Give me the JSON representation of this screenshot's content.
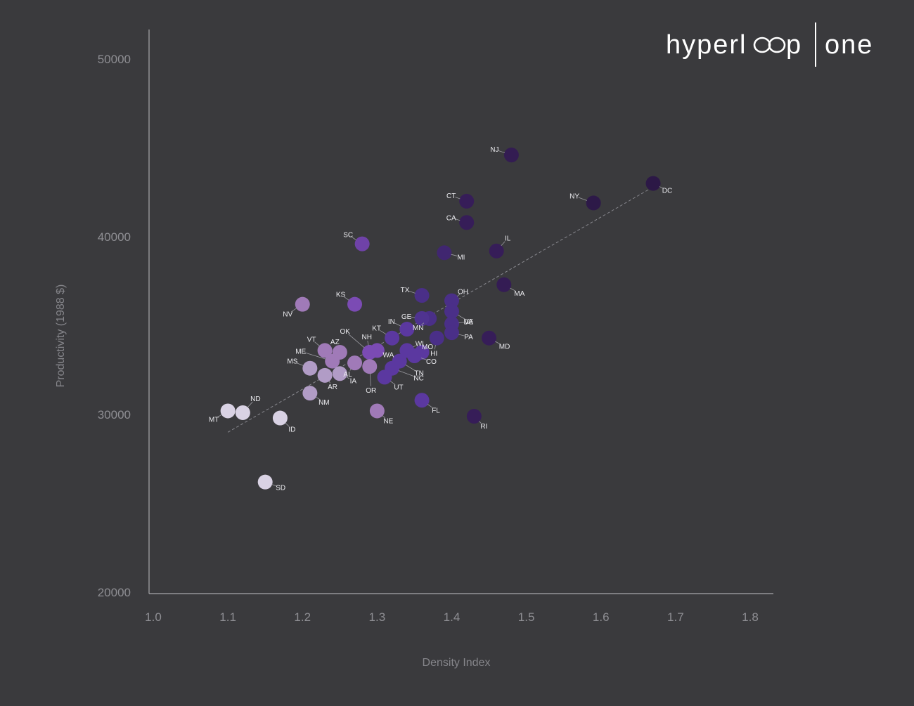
{
  "logo": {
    "text_left": "hyperl",
    "text_mid": "p",
    "text_right": "one"
  },
  "colors": {
    "background": "#3a3a3d",
    "axis": "#a7a7ab",
    "tick_text": "#8e8e93",
    "label_text": "#ececf0",
    "trend": "#8a8a90"
  },
  "chart_data": {
    "type": "scatter",
    "title": "",
    "xlabel": "Density Index",
    "ylabel": "Productivity (1988 $)",
    "xlim": [
      1.0,
      1.8
    ],
    "ylim": [
      20000,
      50000
    ],
    "x_ticks": [
      "1.0",
      "1.1",
      "1.2",
      "1.3",
      "1.4",
      "1.5",
      "1.6",
      "1.7",
      "1.8"
    ],
    "y_ticks": [
      "20000",
      "30000",
      "40000",
      "50000"
    ],
    "grid": false,
    "legend": "none",
    "trendline": {
      "x": [
        1.1,
        1.67
      ],
      "y": [
        29000,
        42800
      ]
    },
    "points": [
      {
        "label": "DC",
        "x": 1.67,
        "y": 43000,
        "color": "#2c1846"
      },
      {
        "label": "NY",
        "x": 1.59,
        "y": 41900,
        "color": "#2d1948"
      },
      {
        "label": "NJ",
        "x": 1.48,
        "y": 44600,
        "color": "#331c52"
      },
      {
        "label": "CT",
        "x": 1.42,
        "y": 42000,
        "color": "#361d58"
      },
      {
        "label": "CA",
        "x": 1.42,
        "y": 40800,
        "color": "#361d58"
      },
      {
        "label": "IL",
        "x": 1.46,
        "y": 39200,
        "color": "#361d58"
      },
      {
        "label": "MI",
        "x": 1.39,
        "y": 39100,
        "color": "#402670"
      },
      {
        "label": "MA",
        "x": 1.47,
        "y": 37300,
        "color": "#341c54"
      },
      {
        "label": "RI",
        "x": 1.43,
        "y": 29900,
        "color": "#361d58"
      },
      {
        "label": "MD",
        "x": 1.45,
        "y": 34300,
        "color": "#361d58"
      },
      {
        "label": "SC",
        "x": 1.28,
        "y": 39600,
        "color": "#6f42a8"
      },
      {
        "label": "TX",
        "x": 1.36,
        "y": 36700,
        "color": "#4a2f88"
      },
      {
        "label": "OH",
        "x": 1.4,
        "y": 36400,
        "color": "#4a2f88"
      },
      {
        "label": "MN",
        "x": 1.37,
        "y": 35400,
        "color": "#4a2f88"
      },
      {
        "label": "VA",
        "x": 1.4,
        "y": 35800,
        "color": "#4a2f88"
      },
      {
        "label": "DE",
        "x": 1.4,
        "y": 35100,
        "color": "#4a2f88"
      },
      {
        "label": "PA",
        "x": 1.4,
        "y": 34600,
        "color": "#4a2f88"
      },
      {
        "label": "HI",
        "x": 1.38,
        "y": 34300,
        "color": "#4a2f88"
      },
      {
        "label": "GE",
        "x": 1.36,
        "y": 35400,
        "color": "#4f3390"
      },
      {
        "label": "IN",
        "x": 1.34,
        "y": 34800,
        "color": "#5b38a0"
      },
      {
        "label": "KT",
        "x": 1.32,
        "y": 34300,
        "color": "#5b38a0"
      },
      {
        "label": "MO",
        "x": 1.36,
        "y": 33500,
        "color": "#5b38a0"
      },
      {
        "label": "WI",
        "x": 1.34,
        "y": 33600,
        "color": "#5b38a0"
      },
      {
        "label": "CO",
        "x": 1.35,
        "y": 33300,
        "color": "#5b38a0"
      },
      {
        "label": "TN",
        "x": 1.33,
        "y": 33000,
        "color": "#5b38a0"
      },
      {
        "label": "NC",
        "x": 1.32,
        "y": 32600,
        "color": "#5b38a0"
      },
      {
        "label": "UT",
        "x": 1.31,
        "y": 32100,
        "color": "#5b38a0"
      },
      {
        "label": "FL",
        "x": 1.36,
        "y": 30800,
        "color": "#5b38a0"
      },
      {
        "label": "WA",
        "x": 1.3,
        "y": 33600,
        "color": "#7b4bb4"
      },
      {
        "label": "NH",
        "x": 1.29,
        "y": 33500,
        "color": "#7b4bb4"
      },
      {
        "label": "OK",
        "x": 1.29,
        "y": 33500,
        "color": "#7b4bb4"
      },
      {
        "label": "KS",
        "x": 1.27,
        "y": 36200,
        "color": "#7b4bb4"
      },
      {
        "label": "OR",
        "x": 1.29,
        "y": 32700,
        "color": "#a07ab8"
      },
      {
        "label": "NV",
        "x": 1.2,
        "y": 36200,
        "color": "#a07ab8"
      },
      {
        "label": "NE",
        "x": 1.3,
        "y": 30200,
        "color": "#a07ab8"
      },
      {
        "label": "AZ",
        "x": 1.25,
        "y": 33500,
        "color": "#a07ab8"
      },
      {
        "label": "AL",
        "x": 1.27,
        "y": 32900,
        "color": "#a07ab8"
      },
      {
        "label": "VT",
        "x": 1.23,
        "y": 33600,
        "color": "#a07ab8"
      },
      {
        "label": "ME",
        "x": 1.24,
        "y": 33000,
        "color": "#a07ab8"
      },
      {
        "label": "IA",
        "x": 1.25,
        "y": 32300,
        "color": "#b19cc6"
      },
      {
        "label": "AR",
        "x": 1.23,
        "y": 32200,
        "color": "#b19cc6"
      },
      {
        "label": "MS",
        "x": 1.21,
        "y": 32600,
        "color": "#b19cc6"
      },
      {
        "label": "NM",
        "x": 1.21,
        "y": 31200,
        "color": "#b19cc6"
      },
      {
        "label": "ND",
        "x": 1.12,
        "y": 30100,
        "color": "#d9d2e4"
      },
      {
        "label": "MT",
        "x": 1.1,
        "y": 30200,
        "color": "#d9d2e4"
      },
      {
        "label": "ID",
        "x": 1.17,
        "y": 29800,
        "color": "#d9d2e4"
      },
      {
        "label": "SD",
        "x": 1.15,
        "y": 26200,
        "color": "#d9d2e4"
      }
    ]
  }
}
